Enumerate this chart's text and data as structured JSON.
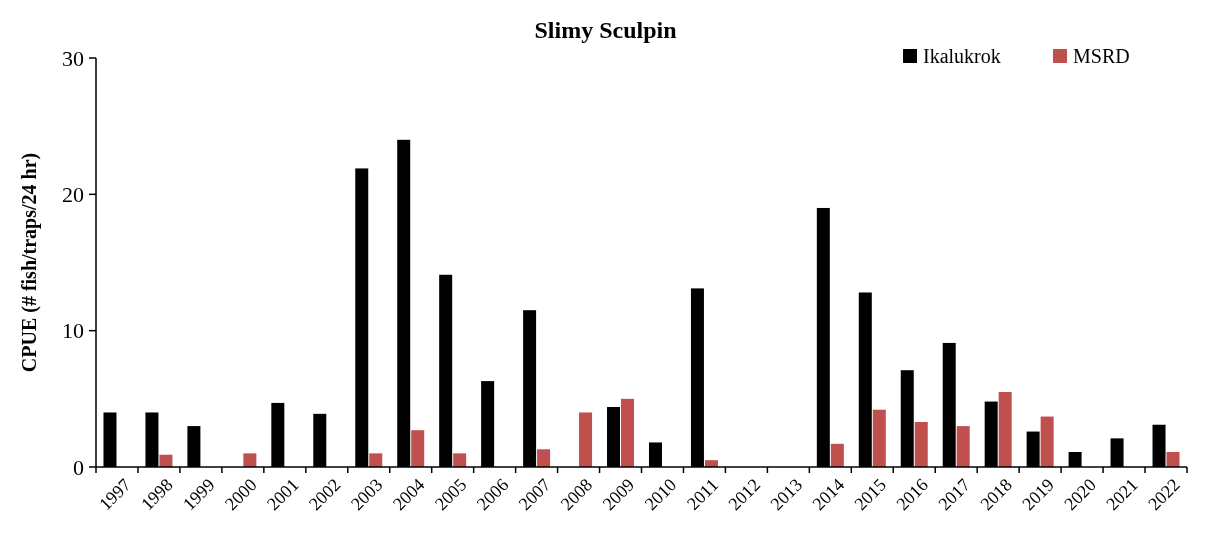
{
  "chart_data": {
    "type": "bar",
    "title": "Slimy Sculpin",
    "ylabel": "CPUE (# fish/traps/24 hr)",
    "categories": [
      "1997",
      "1998",
      "1999",
      "2000",
      "2001",
      "2002",
      "2003",
      "2004",
      "2005",
      "2006",
      "2007",
      "2008",
      "2009",
      "2010",
      "2011",
      "2012",
      "2013",
      "2014",
      "2015",
      "2016",
      "2017",
      "2018",
      "2019",
      "2020",
      "2021",
      "2022"
    ],
    "series": [
      {
        "name": "Ikalukrok",
        "color": "#000000",
        "values": [
          4.0,
          4.0,
          3.0,
          null,
          4.7,
          3.9,
          21.9,
          24.0,
          14.1,
          6.3,
          11.5,
          null,
          4.4,
          1.8,
          13.1,
          null,
          null,
          19.0,
          12.8,
          7.1,
          9.1,
          4.8,
          2.6,
          1.1,
          2.1,
          3.1
        ]
      },
      {
        "name": "MSRD",
        "color": "#c0504d",
        "values": [
          null,
          0.9,
          null,
          1.0,
          null,
          null,
          1.0,
          2.7,
          1.0,
          null,
          1.3,
          4.0,
          5.0,
          null,
          0.5,
          null,
          null,
          1.7,
          4.2,
          3.3,
          3.0,
          5.5,
          3.7,
          null,
          null,
          1.1
        ]
      }
    ],
    "ylim": [
      0,
      30
    ],
    "yticks": [
      0,
      10,
      20,
      30
    ],
    "grid": false,
    "legend": "top right"
  }
}
